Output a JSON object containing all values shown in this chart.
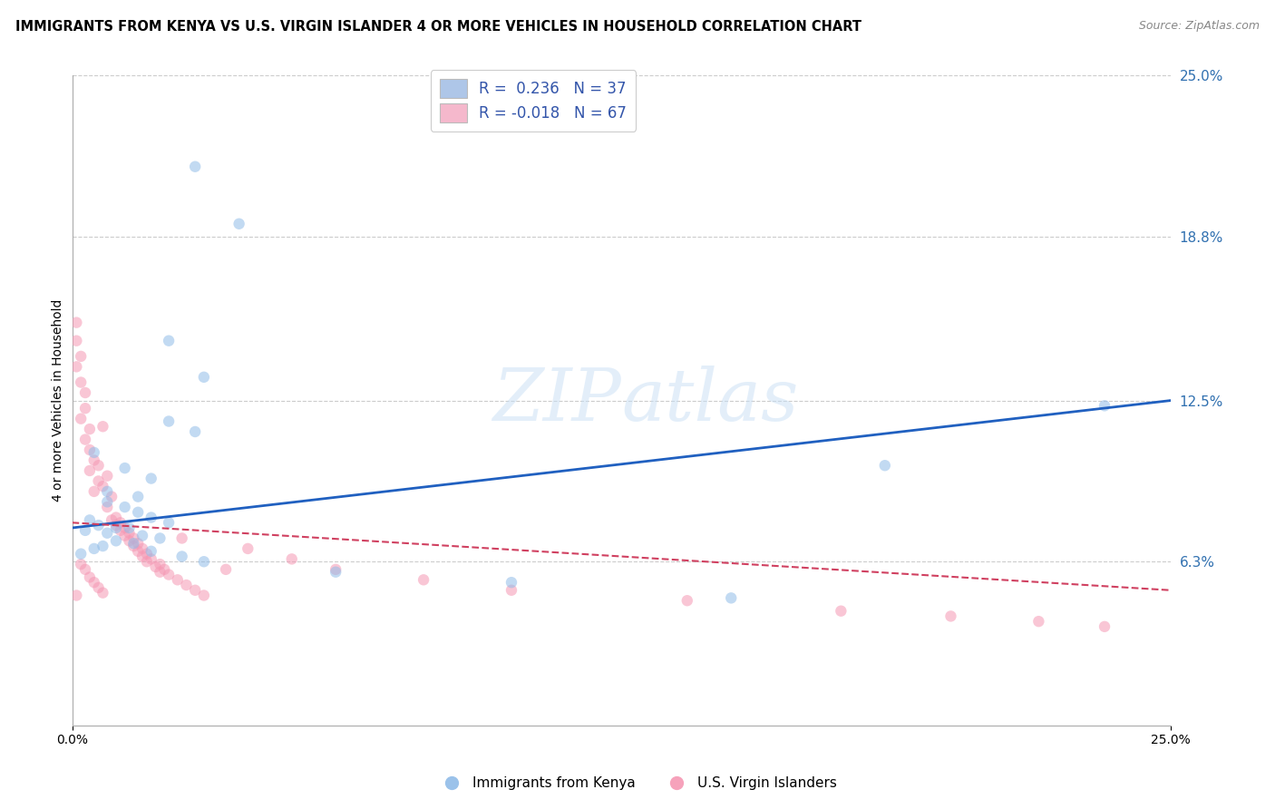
{
  "title": "IMMIGRANTS FROM KENYA VS U.S. VIRGIN ISLANDER 4 OR MORE VEHICLES IN HOUSEHOLD CORRELATION CHART",
  "source": "Source: ZipAtlas.com",
  "ylabel": "4 or more Vehicles in Household",
  "xmin": 0.0,
  "xmax": 0.25,
  "ymin": 0.0,
  "ymax": 0.25,
  "y_tick_labels_right": [
    "25.0%",
    "18.8%",
    "12.5%",
    "6.3%"
  ],
  "y_tick_values_right": [
    0.25,
    0.188,
    0.125,
    0.063
  ],
  "legend_entry1_label": "R =  0.236   N = 37",
  "legend_entry2_label": "R = -0.018   N = 67",
  "legend1_color": "#aec6e8",
  "legend2_color": "#f5b8cc",
  "watermark_zip": "ZIP",
  "watermark_atlas": "atlas",
  "blue_line_x": [
    0.0,
    0.25
  ],
  "blue_line_y": [
    0.076,
    0.125
  ],
  "pink_line_x": [
    0.0,
    0.25
  ],
  "pink_line_y": [
    0.078,
    0.052
  ],
  "scatter_size": 80,
  "scatter_alpha": 0.55,
  "scatter_blue_color": "#90bce8",
  "scatter_pink_color": "#f598b4",
  "line_blue_color": "#2060c0",
  "line_pink_color": "#d04060",
  "grid_color": "#cccccc",
  "background_color": "#ffffff",
  "legend_bottom_labels": [
    "Immigrants from Kenya",
    "U.S. Virgin Islanders"
  ],
  "blue_pts": [
    [
      0.028,
      0.215
    ],
    [
      0.038,
      0.193
    ],
    [
      0.022,
      0.148
    ],
    [
      0.03,
      0.134
    ],
    [
      0.022,
      0.117
    ],
    [
      0.028,
      0.113
    ],
    [
      0.005,
      0.105
    ],
    [
      0.012,
      0.099
    ],
    [
      0.018,
      0.095
    ],
    [
      0.008,
      0.09
    ],
    [
      0.015,
      0.088
    ],
    [
      0.008,
      0.086
    ],
    [
      0.012,
      0.084
    ],
    [
      0.015,
      0.082
    ],
    [
      0.018,
      0.08
    ],
    [
      0.004,
      0.079
    ],
    [
      0.022,
      0.078
    ],
    [
      0.006,
      0.077
    ],
    [
      0.01,
      0.076
    ],
    [
      0.013,
      0.076
    ],
    [
      0.003,
      0.075
    ],
    [
      0.008,
      0.074
    ],
    [
      0.016,
      0.073
    ],
    [
      0.02,
      0.072
    ],
    [
      0.01,
      0.071
    ],
    [
      0.014,
      0.07
    ],
    [
      0.007,
      0.069
    ],
    [
      0.005,
      0.068
    ],
    [
      0.018,
      0.067
    ],
    [
      0.002,
      0.066
    ],
    [
      0.025,
      0.065
    ],
    [
      0.03,
      0.063
    ],
    [
      0.06,
      0.059
    ],
    [
      0.1,
      0.055
    ],
    [
      0.15,
      0.049
    ],
    [
      0.185,
      0.1
    ],
    [
      0.235,
      0.123
    ]
  ],
  "pink_pts": [
    [
      0.001,
      0.155
    ],
    [
      0.001,
      0.148
    ],
    [
      0.002,
      0.142
    ],
    [
      0.001,
      0.138
    ],
    [
      0.002,
      0.132
    ],
    [
      0.003,
      0.128
    ],
    [
      0.003,
      0.122
    ],
    [
      0.002,
      0.118
    ],
    [
      0.004,
      0.114
    ],
    [
      0.003,
      0.11
    ],
    [
      0.004,
      0.106
    ],
    [
      0.005,
      0.102
    ],
    [
      0.004,
      0.098
    ],
    [
      0.006,
      0.094
    ],
    [
      0.005,
      0.09
    ],
    [
      0.007,
      0.115
    ],
    [
      0.006,
      0.1
    ],
    [
      0.008,
      0.096
    ],
    [
      0.007,
      0.092
    ],
    [
      0.009,
      0.088
    ],
    [
      0.008,
      0.084
    ],
    [
      0.01,
      0.08
    ],
    [
      0.009,
      0.079
    ],
    [
      0.011,
      0.078
    ],
    [
      0.01,
      0.077
    ],
    [
      0.012,
      0.076
    ],
    [
      0.011,
      0.075
    ],
    [
      0.013,
      0.074
    ],
    [
      0.012,
      0.073
    ],
    [
      0.014,
      0.072
    ],
    [
      0.013,
      0.071
    ],
    [
      0.015,
      0.07
    ],
    [
      0.014,
      0.069
    ],
    [
      0.016,
      0.068
    ],
    [
      0.015,
      0.067
    ],
    [
      0.017,
      0.066
    ],
    [
      0.016,
      0.065
    ],
    [
      0.018,
      0.064
    ],
    [
      0.017,
      0.063
    ],
    [
      0.002,
      0.062
    ],
    [
      0.003,
      0.06
    ],
    [
      0.02,
      0.062
    ],
    [
      0.019,
      0.061
    ],
    [
      0.021,
      0.06
    ],
    [
      0.02,
      0.059
    ],
    [
      0.022,
      0.058
    ],
    [
      0.004,
      0.057
    ],
    [
      0.024,
      0.056
    ],
    [
      0.005,
      0.055
    ],
    [
      0.026,
      0.054
    ],
    [
      0.006,
      0.053
    ],
    [
      0.028,
      0.052
    ],
    [
      0.007,
      0.051
    ],
    [
      0.03,
      0.05
    ],
    [
      0.035,
      0.06
    ],
    [
      0.025,
      0.072
    ],
    [
      0.04,
      0.068
    ],
    [
      0.05,
      0.064
    ],
    [
      0.06,
      0.06
    ],
    [
      0.08,
      0.056
    ],
    [
      0.1,
      0.052
    ],
    [
      0.14,
      0.048
    ],
    [
      0.175,
      0.044
    ],
    [
      0.2,
      0.042
    ],
    [
      0.22,
      0.04
    ],
    [
      0.235,
      0.038
    ],
    [
      0.001,
      0.05
    ]
  ]
}
